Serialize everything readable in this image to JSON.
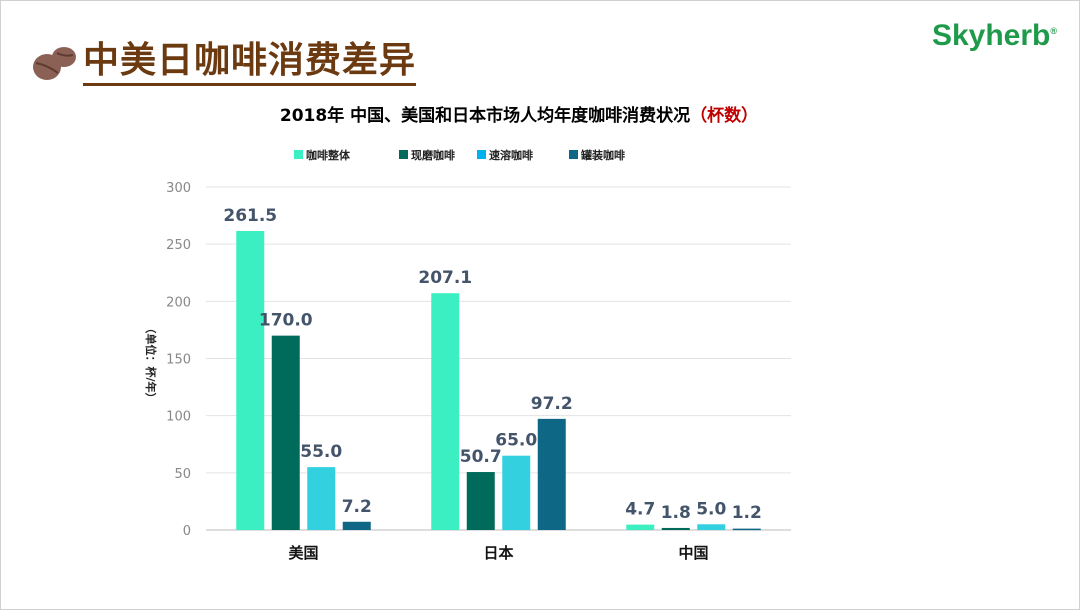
{
  "header": {
    "title": "中美日咖啡消费差异",
    "logo_text": "Skyherb",
    "logo_mark": "®"
  },
  "chart_data": {
    "type": "bar",
    "title": "2018年   中国、美国和日本市场人均年度咖啡消费状况",
    "title_suffix": "（杯数）",
    "ylabel": "（单位：杯/年）",
    "xlabel": "",
    "ylim": [
      0,
      300
    ],
    "yticks": [
      "0",
      "50",
      "100",
      "150",
      "200",
      "250",
      "300"
    ],
    "grid": true,
    "legend_position": "top",
    "categories": [
      "美国",
      "日本",
      "中国"
    ],
    "series": [
      {
        "name": "咖啡整体",
        "color": "#3CEFC2",
        "values": [
          261.5,
          207.1,
          4.7
        ],
        "labels": [
          "261.5",
          "207.1",
          "4.7"
        ]
      },
      {
        "name": "现磨咖啡",
        "color": "#006B5A",
        "values": [
          170.0,
          50.7,
          1.8
        ],
        "labels": [
          "170.0",
          "50.7",
          "1.8"
        ]
      },
      {
        "name": "速溶咖啡",
        "color": "#33D1E0",
        "legend_color": "#00B0F0",
        "values": [
          55.0,
          65.0,
          5.0
        ],
        "labels": [
          "55.0",
          "65.0",
          "5.0"
        ]
      },
      {
        "name": "罐装咖啡",
        "color": "#0E6784",
        "values": [
          7.2,
          97.2,
          1.2
        ],
        "labels": [
          "7.2",
          "97.2",
          "1.2"
        ]
      }
    ],
    "label_color": "#44546A",
    "title_suffix_color": "#C00000"
  }
}
